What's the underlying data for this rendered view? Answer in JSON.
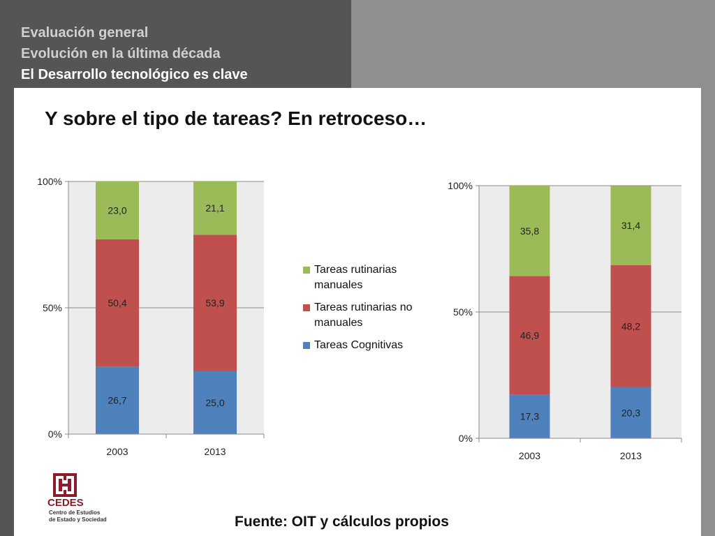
{
  "header": {
    "line1": "Evaluación general",
    "line2": "Evolución en la última década",
    "line3": "El Desarrollo tecnológico es clave"
  },
  "slide_title": "Y sobre el tipo de tareas? En retroceso…",
  "source": "Fuente: OIT  y cálculos propios",
  "logo": {
    "name": "CEDES",
    "subtitle_line1": "Centro de Estudios",
    "subtitle_line2": "de Estado y Sociedad"
  },
  "colors": {
    "cognitivas": "#4f81bd",
    "rutinarias_no_manuales": "#c0504d",
    "rutinarias_manuales": "#9bbb59",
    "plot_bg": "#ececec",
    "header_dark": "#555555",
    "logo": "#8a1c2c"
  },
  "legend": [
    {
      "label": "Tareas rutinarias manuales",
      "color": "#9bbb59"
    },
    {
      "label": "Tareas rutinarias no manuales",
      "color": "#c0504d"
    },
    {
      "label": "Tareas Cognitivas",
      "color": "#4f81bd"
    }
  ],
  "chart_data": [
    {
      "type": "bar",
      "stacked": "percent",
      "categories": [
        "2003",
        "2013"
      ],
      "y_ticks": [
        "0%",
        "50%",
        "100%"
      ],
      "ylim": [
        0,
        100
      ],
      "series": [
        {
          "name": "Tareas Cognitivas",
          "values": [
            26.7,
            25.0
          ],
          "labels": [
            "26,7",
            "25,0"
          ]
        },
        {
          "name": "Tareas rutinarias no manuales",
          "values": [
            50.4,
            53.9
          ],
          "labels": [
            "50,4",
            "53,9"
          ]
        },
        {
          "name": "Tareas rutinarias manuales",
          "values": [
            23.0,
            21.1
          ],
          "labels": [
            "23,0",
            "21,1"
          ]
        }
      ]
    },
    {
      "type": "bar",
      "stacked": "percent",
      "categories": [
        "2003",
        "2013"
      ],
      "y_ticks": [
        "0%",
        "50%",
        "100%"
      ],
      "ylim": [
        0,
        100
      ],
      "series": [
        {
          "name": "Tareas Cognitivas",
          "values": [
            17.3,
            20.3
          ],
          "labels": [
            "17,3",
            "20,3"
          ]
        },
        {
          "name": "Tareas rutinarias no manuales",
          "values": [
            46.9,
            48.2
          ],
          "labels": [
            "46,9",
            "48,2"
          ]
        },
        {
          "name": "Tareas rutinarias manuales",
          "values": [
            35.8,
            31.4
          ],
          "labels": [
            "35,8",
            "31,4"
          ]
        }
      ]
    }
  ]
}
